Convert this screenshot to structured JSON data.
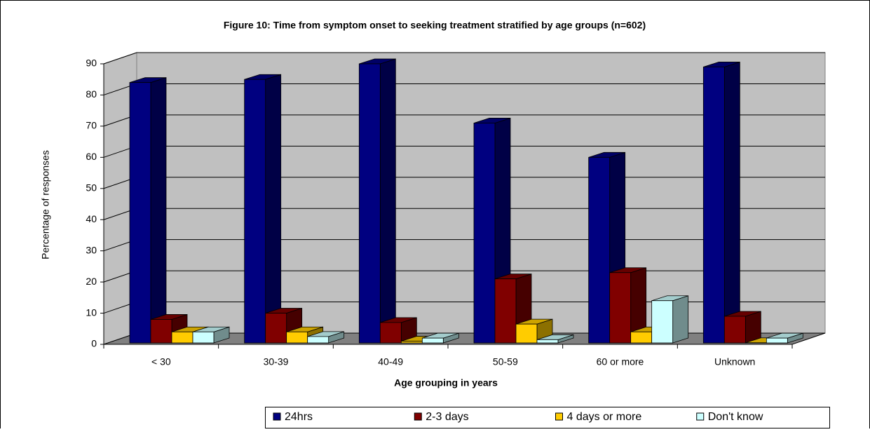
{
  "chart_data": {
    "type": "bar3d",
    "title": "Figure 10: Time from symptom onset to seeking treatment stratified by age groups (n=602)",
    "x_label": "Age grouping in years",
    "y_label": "Percentage of responses",
    "categories": [
      "< 30",
      "30-39",
      "40-49",
      "50-59",
      "60 or more",
      "Unknown"
    ],
    "series": [
      {
        "name": "24hrs",
        "color": "#000080",
        "values": [
          84,
          85,
          90,
          71,
          60,
          89
        ]
      },
      {
        "name": "2-3 days",
        "color": "#800000",
        "values": [
          8,
          10,
          7,
          21,
          23,
          9
        ]
      },
      {
        "name": "4 days or more",
        "color": "#ffcc00",
        "values": [
          4,
          4,
          1,
          6.5,
          4,
          0.5
        ]
      },
      {
        "name": "Don't know",
        "color": "#ccffff",
        "values": [
          4,
          2.5,
          2,
          1.5,
          14,
          2
        ]
      }
    ],
    "ylim": [
      0,
      90
    ],
    "yticks": [
      0,
      10,
      20,
      30,
      40,
      50,
      60,
      70,
      80,
      90
    ],
    "grid": true,
    "legend": "bottom"
  }
}
